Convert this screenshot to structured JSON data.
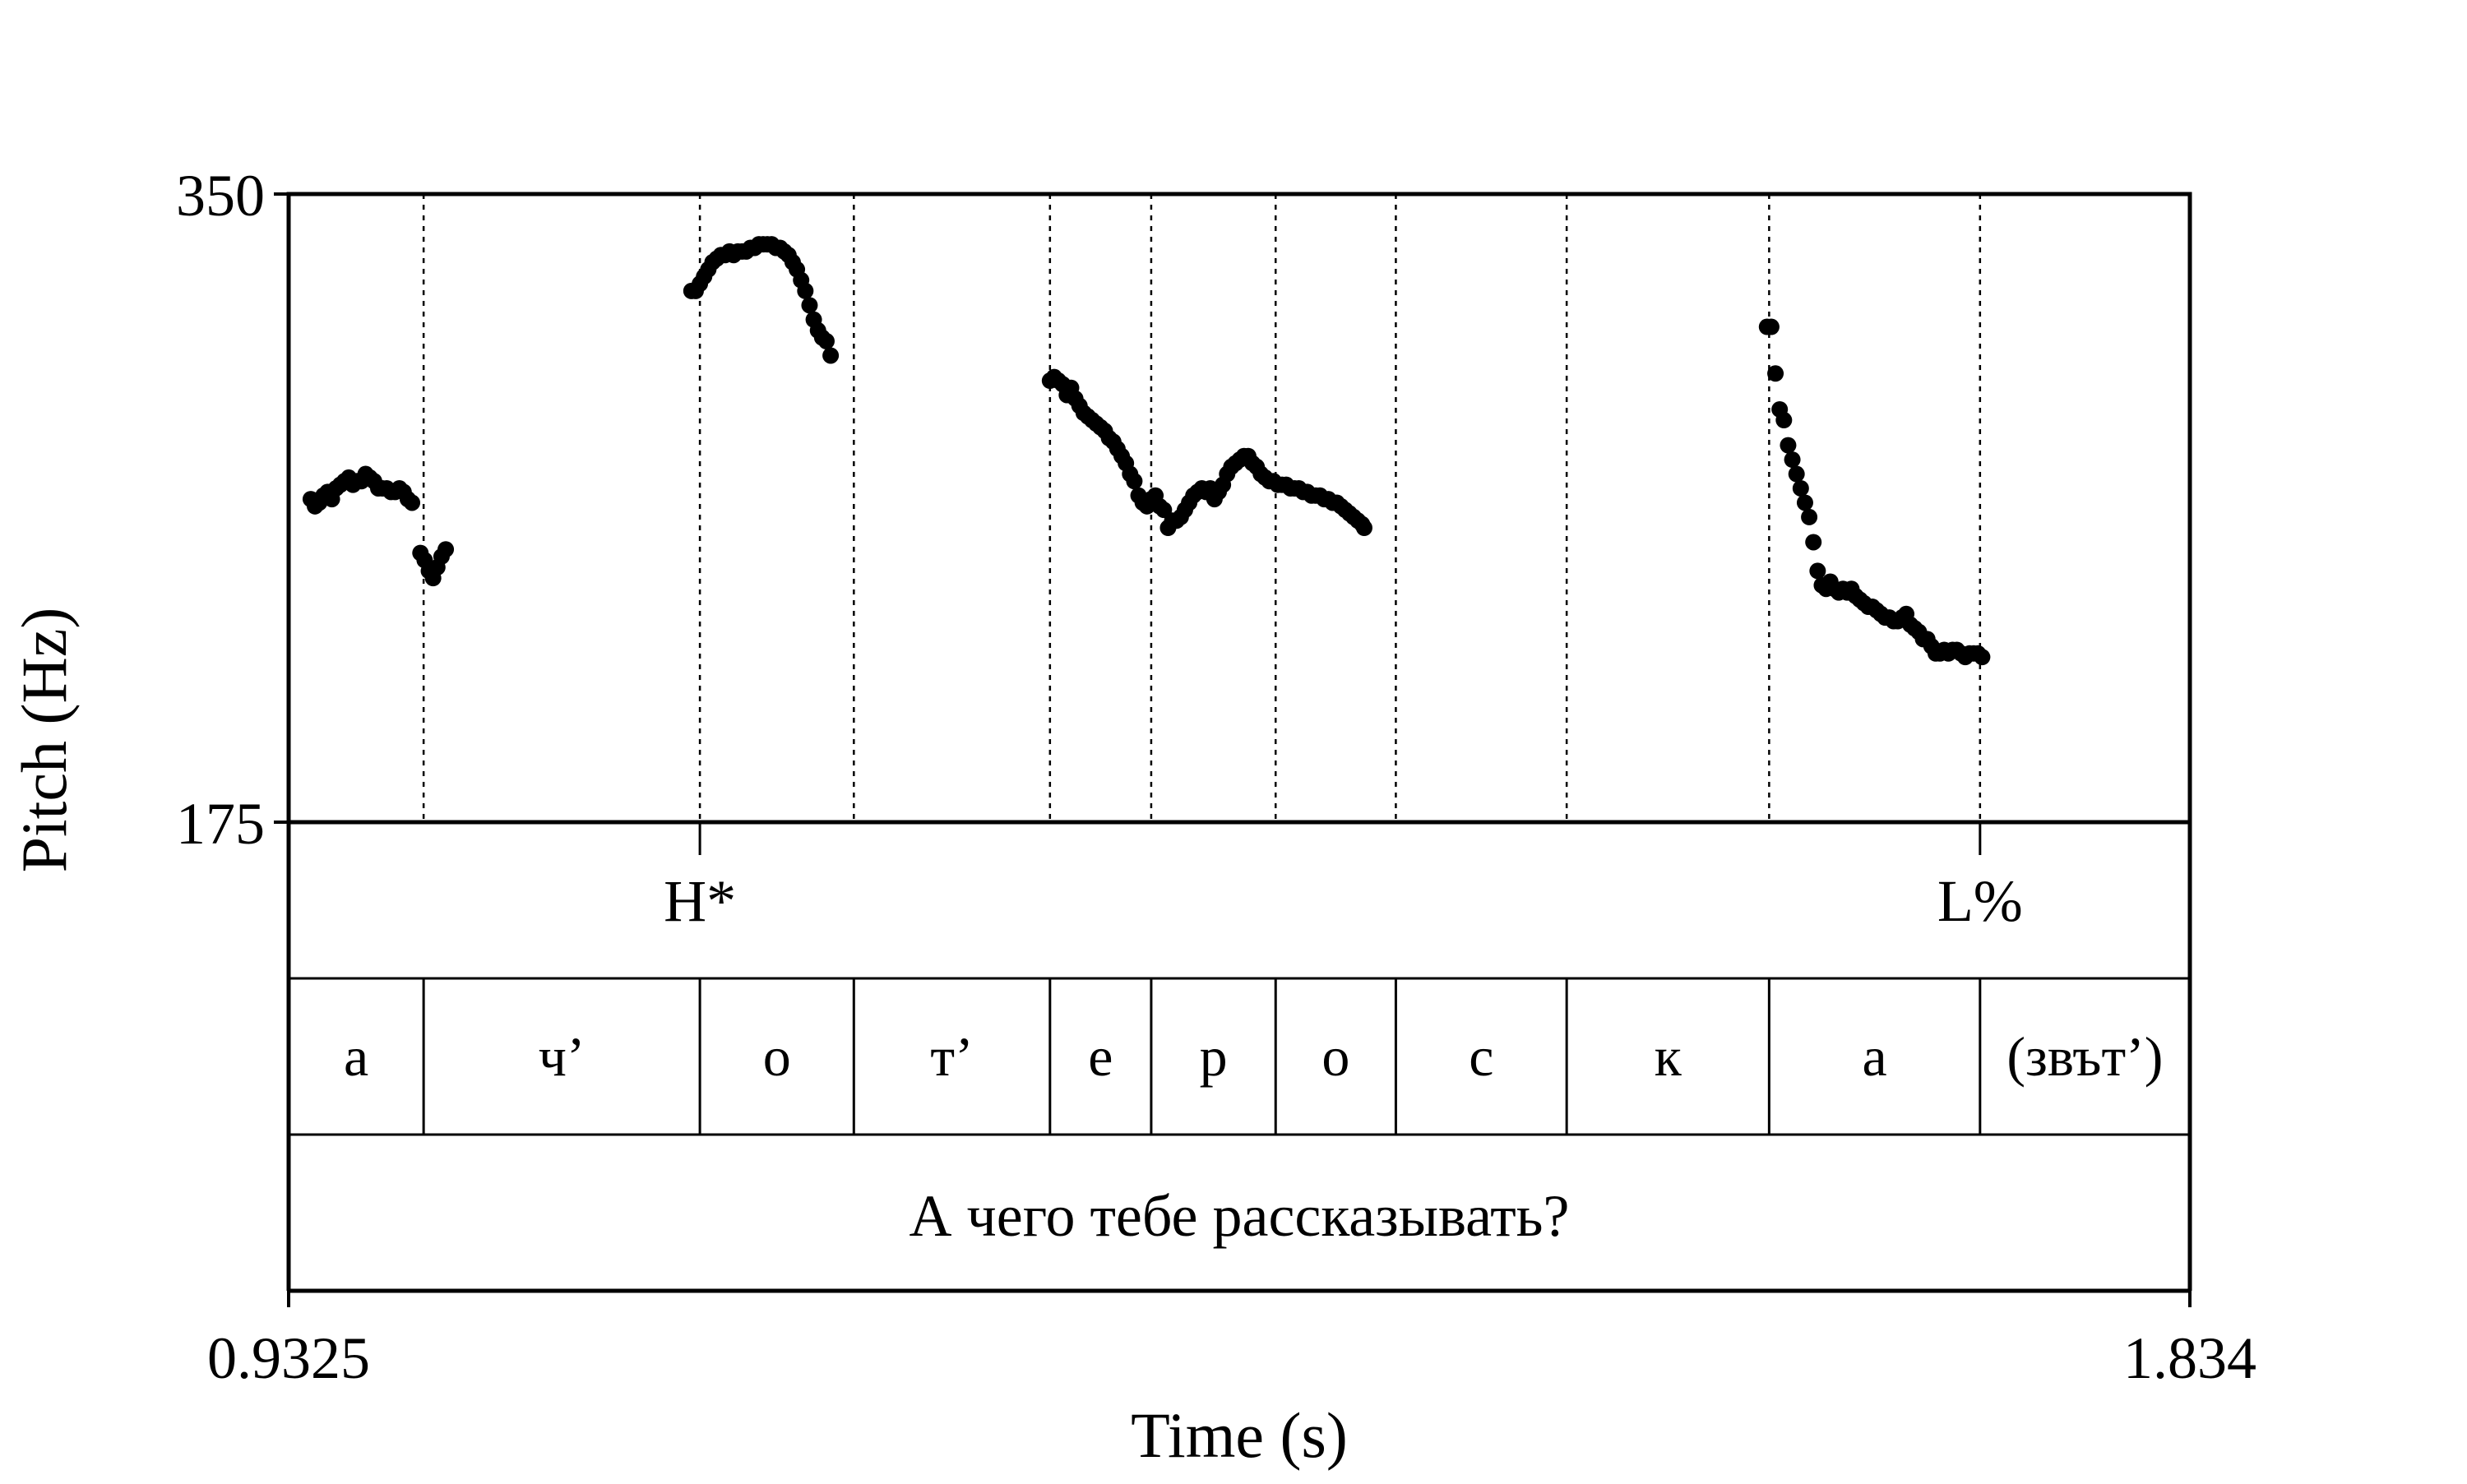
{
  "chart_data": {
    "type": "scatter",
    "title": "",
    "xlabel": "Time (s)",
    "ylabel": "Pitch (Hz)",
    "xlim": [
      0.9325,
      1.834
    ],
    "ylim": [
      175,
      350
    ],
    "x_tick_labels": [
      "0.9325",
      "1.834"
    ],
    "y_tick_labels": [
      "350",
      "175"
    ],
    "grid": false,
    "segment_boundaries": [
      0.9965,
      1.1275,
      1.2005,
      1.2935,
      1.3415,
      1.4005,
      1.4575,
      1.5385,
      1.6345,
      1.7345
    ],
    "tones": [
      {
        "label": "H*",
        "x": 1.1275
      },
      {
        "label": "L%",
        "x": 1.7345
      }
    ],
    "segments": [
      {
        "label": "а",
        "start": 0.9325,
        "end": 0.9965
      },
      {
        "label": "ч’",
        "start": 0.9965,
        "end": 1.1275
      },
      {
        "label": "о",
        "start": 1.1275,
        "end": 1.2005
      },
      {
        "label": "т’",
        "start": 1.2005,
        "end": 1.2935
      },
      {
        "label": "е",
        "start": 1.2935,
        "end": 1.3415
      },
      {
        "label": "р",
        "start": 1.3415,
        "end": 1.4005
      },
      {
        "label": "о",
        "start": 1.4005,
        "end": 1.4575
      },
      {
        "label": "с",
        "start": 1.4575,
        "end": 1.5385
      },
      {
        "label": "к",
        "start": 1.5385,
        "end": 1.6345
      },
      {
        "label": "а",
        "start": 1.6345,
        "end": 1.7345
      },
      {
        "label": "(звът’)",
        "start": 1.7345,
        "end": 1.834
      }
    ],
    "utterance": "А чего тебе рассказывать?",
    "series": [
      {
        "values": [
          [
            0.943,
            265
          ],
          [
            0.945,
            263
          ],
          [
            0.947,
            264
          ],
          [
            0.949,
            266
          ],
          [
            0.951,
            267
          ],
          [
            0.953,
            265
          ],
          [
            0.955,
            268
          ],
          [
            0.957,
            269
          ],
          [
            0.959,
            270
          ],
          [
            0.961,
            271
          ],
          [
            0.963,
            269
          ],
          [
            0.965,
            270
          ],
          [
            0.967,
            270
          ],
          [
            0.969,
            272
          ],
          [
            0.971,
            271
          ],
          [
            0.973,
            270
          ],
          [
            0.975,
            268
          ],
          [
            0.977,
            268
          ],
          [
            0.979,
            268
          ],
          [
            0.981,
            267
          ],
          [
            0.983,
            267
          ],
          [
            0.985,
            268
          ],
          [
            0.987,
            267
          ],
          [
            0.989,
            265
          ],
          [
            0.991,
            264
          ],
          [
            0.995,
            250
          ],
          [
            0.997,
            248
          ],
          [
            0.999,
            245
          ],
          [
            1.001,
            243
          ],
          [
            1.003,
            246
          ],
          [
            1.005,
            249
          ],
          [
            1.007,
            251
          ],
          [
            1.1235,
            323
          ],
          [
            1.1255,
            323
          ],
          [
            1.1275,
            325
          ],
          [
            1.1295,
            327
          ],
          [
            1.1315,
            329
          ],
          [
            1.1335,
            331
          ],
          [
            1.1355,
            332
          ],
          [
            1.1375,
            333
          ],
          [
            1.1395,
            333
          ],
          [
            1.1415,
            334
          ],
          [
            1.1435,
            333
          ],
          [
            1.1455,
            334
          ],
          [
            1.1475,
            334
          ],
          [
            1.1495,
            334
          ],
          [
            1.1515,
            335
          ],
          [
            1.1535,
            335
          ],
          [
            1.1555,
            336
          ],
          [
            1.1575,
            336
          ],
          [
            1.1595,
            336
          ],
          [
            1.1615,
            336
          ],
          [
            1.1635,
            335
          ],
          [
            1.1655,
            335
          ],
          [
            1.1675,
            334
          ],
          [
            1.1695,
            333
          ],
          [
            1.1715,
            331
          ],
          [
            1.1735,
            329
          ],
          [
            1.1755,
            326
          ],
          [
            1.1775,
            323
          ],
          [
            1.1795,
            319
          ],
          [
            1.1815,
            315
          ],
          [
            1.1835,
            312
          ],
          [
            1.1855,
            310
          ],
          [
            1.1875,
            309
          ],
          [
            1.1895,
            305
          ],
          [
            1.2935,
            298
          ],
          [
            1.2955,
            299
          ],
          [
            1.2975,
            298
          ],
          [
            1.2995,
            297
          ],
          [
            1.3015,
            294
          ],
          [
            1.3035,
            296
          ],
          [
            1.3055,
            293
          ],
          [
            1.3075,
            291
          ],
          [
            1.3095,
            289
          ],
          [
            1.3115,
            288
          ],
          [
            1.3135,
            287
          ],
          [
            1.3155,
            286
          ],
          [
            1.3175,
            285
          ],
          [
            1.3195,
            284
          ],
          [
            1.3215,
            282
          ],
          [
            1.3235,
            281
          ],
          [
            1.3255,
            279
          ],
          [
            1.3275,
            277
          ],
          [
            1.3295,
            275
          ],
          [
            1.3315,
            272
          ],
          [
            1.3335,
            270
          ],
          [
            1.3355,
            266
          ],
          [
            1.3375,
            264
          ],
          [
            1.3395,
            263
          ],
          [
            1.3415,
            265
          ],
          [
            1.3435,
            266
          ],
          [
            1.3455,
            263
          ],
          [
            1.3475,
            262
          ],
          [
            1.3495,
            257
          ],
          [
            1.3515,
            259
          ],
          [
            1.3535,
            259
          ],
          [
            1.3555,
            260
          ],
          [
            1.3575,
            262
          ],
          [
            1.3595,
            264
          ],
          [
            1.3615,
            266
          ],
          [
            1.3635,
            267
          ],
          [
            1.3655,
            268
          ],
          [
            1.3675,
            267
          ],
          [
            1.3695,
            268
          ],
          [
            1.3715,
            265
          ],
          [
            1.3735,
            267
          ],
          [
            1.3755,
            269
          ],
          [
            1.3775,
            272
          ],
          [
            1.3795,
            274
          ],
          [
            1.3815,
            275
          ],
          [
            1.3835,
            276
          ],
          [
            1.3855,
            277
          ],
          [
            1.3875,
            277
          ],
          [
            1.3895,
            275
          ],
          [
            1.3915,
            274
          ],
          [
            1.3935,
            272
          ],
          [
            1.3955,
            271
          ],
          [
            1.3975,
            270
          ],
          [
            1.3995,
            270
          ],
          [
            1.4015,
            269
          ],
          [
            1.4035,
            269
          ],
          [
            1.4055,
            269
          ],
          [
            1.4075,
            268
          ],
          [
            1.4095,
            268
          ],
          [
            1.4115,
            268
          ],
          [
            1.4135,
            267
          ],
          [
            1.4155,
            267
          ],
          [
            1.4175,
            266
          ],
          [
            1.4195,
            266
          ],
          [
            1.4215,
            266
          ],
          [
            1.4235,
            265
          ],
          [
            1.4255,
            265
          ],
          [
            1.4275,
            264
          ],
          [
            1.4295,
            264
          ],
          [
            1.4315,
            263
          ],
          [
            1.4335,
            262
          ],
          [
            1.4355,
            261
          ],
          [
            1.4375,
            260
          ],
          [
            1.4395,
            259
          ],
          [
            1.4415,
            258
          ],
          [
            1.4425,
            257
          ],
          [
            1.6335,
            313
          ],
          [
            1.6355,
            313
          ],
          [
            1.6375,
            300
          ],
          [
            1.6395,
            290
          ],
          [
            1.6415,
            287
          ],
          [
            1.6435,
            280
          ],
          [
            1.6455,
            276
          ],
          [
            1.6475,
            272
          ],
          [
            1.6495,
            268
          ],
          [
            1.6515,
            264
          ],
          [
            1.6535,
            260
          ],
          [
            1.6555,
            253
          ],
          [
            1.6575,
            245
          ],
          [
            1.6595,
            241
          ],
          [
            1.6615,
            240
          ],
          [
            1.6635,
            242
          ],
          [
            1.6655,
            240
          ],
          [
            1.6675,
            239
          ],
          [
            1.6695,
            240
          ],
          [
            1.6715,
            239
          ],
          [
            1.6735,
            240
          ],
          [
            1.6755,
            238
          ],
          [
            1.6775,
            237
          ],
          [
            1.6795,
            236
          ],
          [
            1.6815,
            235
          ],
          [
            1.6835,
            235
          ],
          [
            1.6855,
            234
          ],
          [
            1.6875,
            233
          ],
          [
            1.6895,
            232
          ],
          [
            1.6915,
            232
          ],
          [
            1.6935,
            231
          ],
          [
            1.6955,
            231
          ],
          [
            1.6975,
            232
          ],
          [
            1.6995,
            233
          ],
          [
            1.7015,
            230
          ],
          [
            1.7035,
            229
          ],
          [
            1.7055,
            228
          ],
          [
            1.7075,
            226
          ],
          [
            1.7095,
            226
          ],
          [
            1.7115,
            224
          ],
          [
            1.7135,
            222
          ],
          [
            1.7155,
            222
          ],
          [
            1.7175,
            223
          ],
          [
            1.7195,
            222
          ],
          [
            1.7215,
            223
          ],
          [
            1.7235,
            223
          ],
          [
            1.7255,
            222
          ],
          [
            1.7275,
            221
          ],
          [
            1.7295,
            222
          ],
          [
            1.7315,
            222
          ],
          [
            1.7335,
            222
          ],
          [
            1.7355,
            221
          ]
        ]
      }
    ]
  }
}
